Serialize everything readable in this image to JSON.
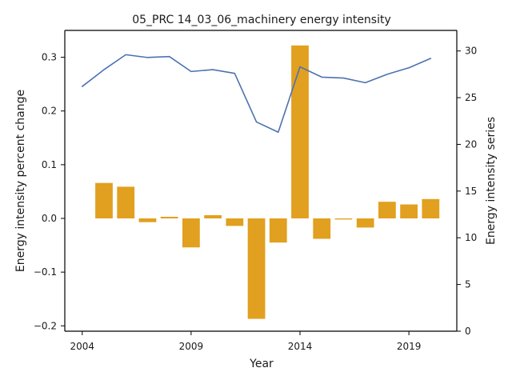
{
  "chart_data": {
    "type": "bar+line",
    "title": "05_PRC 14_03_06_machinery energy intensity",
    "xlabel": "Year",
    "ylabel_left": "Energy intensity percent change",
    "ylabel_right": "Energy intensity series",
    "x": [
      2004,
      2005,
      2006,
      2007,
      2008,
      2009,
      2010,
      2011,
      2012,
      2013,
      2014,
      2015,
      2016,
      2017,
      2018,
      2019,
      2020
    ],
    "x_ticks": [
      "2004",
      "2009",
      "2014",
      "2019"
    ],
    "y_left_ticks": [
      "−0.2",
      "−0.1",
      "0.0",
      "0.1",
      "0.2",
      "0.3"
    ],
    "y_right_ticks": [
      "0",
      "5",
      "10",
      "15",
      "20",
      "25",
      "30"
    ],
    "ylim_left": [
      -0.21,
      0.35
    ],
    "ylim_right": [
      0,
      32.2
    ],
    "xlim": [
      2003.2,
      2021.2
    ],
    "series": [
      {
        "type": "bar",
        "axis": "left",
        "color": "#E1A01F",
        "values": [
          null,
          0.066,
          0.059,
          -0.007,
          0.003,
          -0.054,
          0.006,
          -0.014,
          -0.187,
          -0.045,
          0.322,
          -0.038,
          -0.002,
          -0.017,
          0.031,
          0.026,
          0.036
        ]
      },
      {
        "type": "line",
        "axis": "right",
        "color": "#4C72B0",
        "values": [
          26.2,
          28.0,
          29.6,
          29.3,
          29.4,
          27.8,
          28.0,
          27.6,
          22.4,
          21.3,
          28.3,
          27.2,
          27.1,
          26.6,
          27.5,
          28.2,
          29.2
        ]
      }
    ]
  }
}
